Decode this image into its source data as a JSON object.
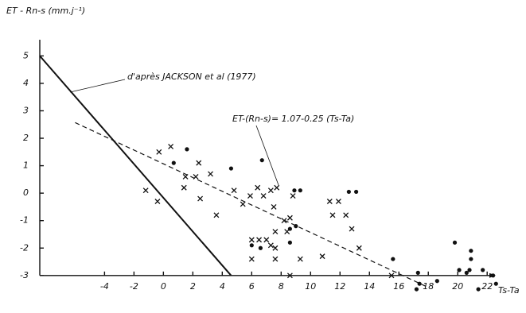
{
  "chart_data": {
    "type": "scatter",
    "y_label": "ET - Rn-s (mm.j⁻¹)",
    "x_label": "Ts-Ta",
    "xlim": [
      -8.4,
      22.8
    ],
    "ylim": [
      -3.7,
      5.3
    ],
    "xticks": [
      -4,
      -2,
      0,
      2,
      4,
      6,
      8,
      10,
      12,
      14,
      16,
      18,
      20,
      22
    ],
    "yticks": [
      -3,
      -2,
      -1,
      0,
      1,
      2,
      3,
      4,
      5
    ],
    "annotations": [
      "d'après JACKSON et al  (1977)",
      "ET-(Rn-s)= 1.07-0.25 (Ts-Ta)"
    ],
    "lines": [
      {
        "x": [
          -8.4,
          4.6
        ],
        "y": [
          5,
          -3
        ],
        "style": "solid",
        "color": "#111"
      },
      {
        "x": [
          -6,
          17.9
        ],
        "y": [
          2.57,
          -3.41
        ],
        "style": "dashed",
        "color": "#111"
      }
    ],
    "series": [
      {
        "marker": "x",
        "color": "#111",
        "x": [
          -1.2,
          -0.4,
          0.5,
          -0.3,
          1.5,
          1.4,
          2.4,
          2.2,
          2.5,
          3.2,
          3.6,
          4.8,
          5.4,
          5.9,
          6.4,
          6.8,
          7.3,
          7.5,
          7.7,
          8.2,
          8.6,
          8.8,
          7.6,
          8.4,
          6,
          6.5,
          7,
          7.3,
          7.6,
          7.6,
          6,
          9.3,
          10.8,
          11.3,
          11.5,
          11.9,
          12.4,
          12.8,
          13.3,
          8.6,
          15.5
        ],
        "y": [
          0.1,
          -0.3,
          1.7,
          1.5,
          0.6,
          0.2,
          1.1,
          0.6,
          -0.2,
          0.7,
          -0.8,
          0.1,
          -0.4,
          -0.1,
          0.2,
          -0.1,
          0.1,
          -0.5,
          0.2,
          -1.0,
          -0.9,
          -0.1,
          -1.4,
          -1.4,
          -1.7,
          -1.7,
          -1.7,
          -1.9,
          -2.0,
          -2.4,
          -2.4,
          -2.4,
          -2.3,
          -0.3,
          -0.8,
          -0.3,
          -0.8,
          -1.3,
          -2.0,
          -3.0,
          -3.0
        ]
      },
      {
        "marker": "dot",
        "color": "#111",
        "x": [
          0.7,
          1.6,
          4.6,
          6.7,
          8.9,
          9.3,
          12.6,
          13.1,
          6,
          6.6,
          8.6,
          8.6,
          9,
          15.6,
          17.3,
          17.4,
          17.2,
          19.8,
          20.1,
          20.6,
          20.9,
          20.9,
          20.8,
          21.4,
          21.7,
          22.4,
          22.6,
          18.6
        ],
        "y": [
          1.1,
          1.6,
          0.9,
          1.2,
          0.1,
          0.1,
          0.05,
          0.05,
          -1.9,
          -2.0,
          -1.8,
          -1.3,
          -1.2,
          -2.4,
          -2.9,
          -3.3,
          -3.5,
          -1.8,
          -2.8,
          -2.9,
          -2.1,
          -2.4,
          -2.8,
          -3.5,
          -2.8,
          -3.0,
          -3.3,
          -3.2
        ]
      }
    ]
  }
}
